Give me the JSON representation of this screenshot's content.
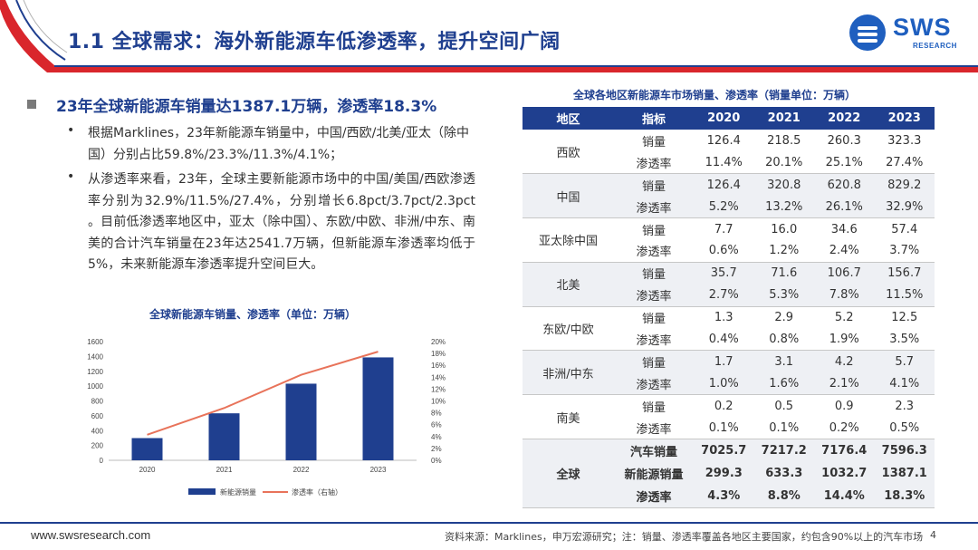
{
  "header": {
    "title": "1.1 全球需求：海外新能源车低渗透率，提升空间广阔",
    "logo_text": "SWS",
    "logo_sub": "RESEARCH",
    "accent_color": "#d9262c",
    "brand_color": "#1f3f8f"
  },
  "left": {
    "headline": "23年全球新能源车销量达1387.1万辆，渗透率18.3%",
    "bullets": [
      "根据Marklines，23年新能源车销量中，中国/西欧/北美/亚太（除中国）分别占比59.8%/23.3%/11.3%/4.1%；",
      "从渗透率来看，23年，全球主要新能源市场中的中国/美国/西欧渗透率分别为32.9%/11.5%/27.4%，分别增长6.8pct/3.7pct/2.3pct 。目前低渗透率地区中，亚太（除中国）、东欧/中欧、非洲/中东、南美的合计汽车销量在23年达2541.7万辆，但新能源车渗透率均低于5%，未来新能源车渗透率提升空间巨大。"
    ]
  },
  "chart_data": {
    "type": "bar",
    "title": "全球新能源车销量、渗透率（单位：万辆）",
    "categories": [
      "2020",
      "2021",
      "2022",
      "2023"
    ],
    "series": [
      {
        "name": "新能源销量",
        "kind": "bar",
        "axis": "left",
        "values": [
          299.3,
          633.3,
          1032.7,
          1387.1
        ]
      },
      {
        "name": "渗透率（右轴）",
        "kind": "line",
        "axis": "right",
        "values": [
          4.3,
          8.8,
          14.4,
          18.3
        ]
      }
    ],
    "ylim": [
      0,
      1600
    ],
    "yticks": [
      "0",
      "200",
      "400",
      "600",
      "800",
      "1000",
      "1200",
      "1400",
      "1600"
    ],
    "y2lim": [
      0,
      20
    ],
    "y2ticks": [
      "0%",
      "2%",
      "4%",
      "6%",
      "8%",
      "10%",
      "12%",
      "14%",
      "16%",
      "18%",
      "20%"
    ],
    "legend_position": "bottom",
    "bar_color": "#1f3f8f",
    "line_color": "#e8735a"
  },
  "table": {
    "title": "全球各地区新能源车市场销量、渗透率（销量单位：万辆）",
    "headers": [
      "地区",
      "指标",
      "2020",
      "2021",
      "2022",
      "2023"
    ],
    "groups": [
      {
        "region": "西欧",
        "rows": [
          {
            "metric": "销量",
            "values": [
              "126.4",
              "218.5",
              "260.3",
              "323.3"
            ]
          },
          {
            "metric": "渗透率",
            "values": [
              "11.4%",
              "20.1%",
              "25.1%",
              "27.4%"
            ]
          }
        ]
      },
      {
        "region": "中国",
        "rows": [
          {
            "metric": "销量",
            "values": [
              "126.4",
              "320.8",
              "620.8",
              "829.2"
            ]
          },
          {
            "metric": "渗透率",
            "values": [
              "5.2%",
              "13.2%",
              "26.1%",
              "32.9%"
            ]
          }
        ]
      },
      {
        "region": "亚太除中国",
        "rows": [
          {
            "metric": "销量",
            "values": [
              "7.7",
              "16.0",
              "34.6",
              "57.4"
            ]
          },
          {
            "metric": "渗透率",
            "values": [
              "0.6%",
              "1.2%",
              "2.4%",
              "3.7%"
            ]
          }
        ]
      },
      {
        "region": "北美",
        "rows": [
          {
            "metric": "销量",
            "values": [
              "35.7",
              "71.6",
              "106.7",
              "156.7"
            ]
          },
          {
            "metric": "渗透率",
            "values": [
              "2.7%",
              "5.3%",
              "7.8%",
              "11.5%"
            ]
          }
        ]
      },
      {
        "region": "东欧/中欧",
        "rows": [
          {
            "metric": "销量",
            "values": [
              "1.3",
              "2.9",
              "5.2",
              "12.5"
            ]
          },
          {
            "metric": "渗透率",
            "values": [
              "0.4%",
              "0.8%",
              "1.9%",
              "3.5%"
            ]
          }
        ]
      },
      {
        "region": "非洲/中东",
        "rows": [
          {
            "metric": "销量",
            "values": [
              "1.7",
              "3.1",
              "4.2",
              "5.7"
            ]
          },
          {
            "metric": "渗透率",
            "values": [
              "1.0%",
              "1.6%",
              "2.1%",
              "4.1%"
            ]
          }
        ]
      },
      {
        "region": "南美",
        "rows": [
          {
            "metric": "销量",
            "values": [
              "0.2",
              "0.5",
              "0.9",
              "2.3"
            ]
          },
          {
            "metric": "渗透率",
            "values": [
              "0.1%",
              "0.1%",
              "0.2%",
              "0.5%"
            ]
          }
        ]
      },
      {
        "region": "全球",
        "rows": [
          {
            "metric": "汽车销量",
            "values": [
              "7025.7",
              "7217.2",
              "7176.4",
              "7596.3"
            ]
          },
          {
            "metric": "新能源销量",
            "values": [
              "299.3",
              "633.3",
              "1032.7",
              "1387.1"
            ]
          },
          {
            "metric": "渗透率",
            "values": [
              "4.3%",
              "8.8%",
              "14.4%",
              "18.3%"
            ]
          }
        ]
      }
    ]
  },
  "footer": {
    "url": "www.swsresearch.com",
    "source": "资料来源：Marklines，申万宏源研究；注：销量、渗透率覆盖各地区主要国家，约包含90%以上的汽车市场",
    "page": "4"
  }
}
